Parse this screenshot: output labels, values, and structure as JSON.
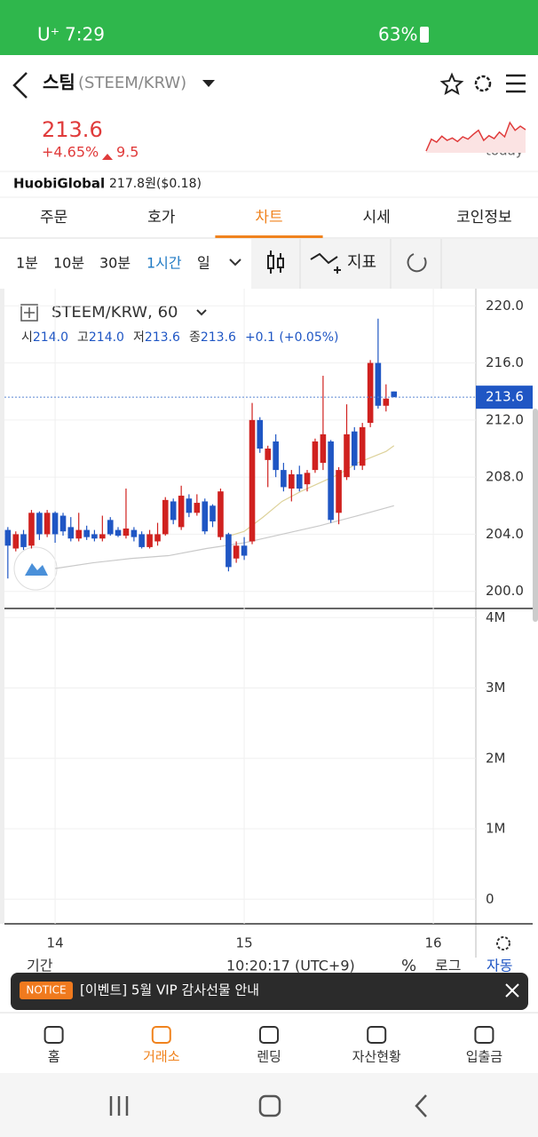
{
  "status_bar": {
    "carrier": "U⁺",
    "time": "7:29",
    "battery": "63%"
  },
  "header": {
    "name": "스팀",
    "pair": "(STEEM/KRW)"
  },
  "price": {
    "value": "213.6",
    "change_pct": "+4.65%",
    "change": "9.5"
  },
  "sparkline": {
    "label": "today",
    "values": [
      210,
      212,
      211.5,
      212.5,
      211.8,
      212.2,
      211.6,
      212.4,
      212,
      212.8,
      213.5,
      211.8,
      212.6,
      212.1,
      213.2,
      212.4,
      214.8,
      213.5,
      214.2,
      213.6
    ]
  },
  "exchange": {
    "name": "HuobiGlobal",
    "price": "217.8원($0.18)"
  },
  "tabs": [
    "주문",
    "호가",
    "차트",
    "시세",
    "코인정보"
  ],
  "active_tab": 2,
  "intervals": [
    "1분",
    "10분",
    "30분",
    "1시간",
    "일"
  ],
  "active_interval": 3,
  "indicator_label": "지표",
  "chart_data": {
    "type": "candlestick",
    "symbol": "STEEM/KRW, 60",
    "legend": [
      {
        "label": "시",
        "value": "214.0"
      },
      {
        "label": "고",
        "value": "214.0"
      },
      {
        "label": "저",
        "value": "213.6"
      },
      {
        "label": "종",
        "value": "213.6"
      }
    ],
    "legend_change": "+0.1 (+0.05%)",
    "up_color": "#d0211f",
    "down_color": "#1f56c4",
    "candles": [
      {
        "x": 13.75,
        "open": 204.3,
        "high": 204.5,
        "low": 200.9,
        "close": 203.2
      },
      {
        "x": 13.792,
        "open": 203.0,
        "high": 204.2,
        "low": 202.8,
        "close": 204.0
      },
      {
        "x": 13.833,
        "open": 204.0,
        "high": 204.3,
        "low": 202.9,
        "close": 203.1
      },
      {
        "x": 13.875,
        "open": 203.2,
        "high": 205.7,
        "low": 203.0,
        "close": 205.5
      },
      {
        "x": 13.917,
        "open": 205.5,
        "high": 205.6,
        "low": 203.6,
        "close": 204.0
      },
      {
        "x": 13.958,
        "open": 204.0,
        "high": 205.7,
        "low": 203.8,
        "close": 205.5
      },
      {
        "x": 14.0,
        "open": 205.5,
        "high": 205.6,
        "low": 203.4,
        "close": 204.0
      },
      {
        "x": 14.042,
        "open": 205.3,
        "high": 205.5,
        "low": 203.9,
        "close": 204.2
      },
      {
        "x": 14.083,
        "open": 204.5,
        "high": 205.2,
        "low": 203.5,
        "close": 203.7
      },
      {
        "x": 14.125,
        "open": 203.7,
        "high": 205.5,
        "low": 203.5,
        "close": 204.3
      },
      {
        "x": 14.167,
        "open": 204.3,
        "high": 204.6,
        "low": 203.6,
        "close": 203.8
      },
      {
        "x": 14.208,
        "open": 204.0,
        "high": 204.3,
        "low": 203.5,
        "close": 203.7
      },
      {
        "x": 14.25,
        "open": 203.7,
        "high": 205.3,
        "low": 203.5,
        "close": 204.0
      },
      {
        "x": 14.292,
        "open": 205.0,
        "high": 205.2,
        "low": 203.9,
        "close": 204.0
      },
      {
        "x": 14.333,
        "open": 204.3,
        "high": 204.5,
        "low": 203.8,
        "close": 203.9
      },
      {
        "x": 14.375,
        "open": 203.9,
        "high": 207.2,
        "low": 203.7,
        "close": 204.4
      },
      {
        "x": 14.417,
        "open": 204.3,
        "high": 204.5,
        "low": 203.5,
        "close": 203.8
      },
      {
        "x": 14.458,
        "open": 204.0,
        "high": 204.2,
        "low": 203.0,
        "close": 203.1
      },
      {
        "x": 14.5,
        "open": 203.1,
        "high": 204.3,
        "low": 203.0,
        "close": 204.0
      },
      {
        "x": 14.542,
        "open": 203.5,
        "high": 204.8,
        "low": 203.2,
        "close": 204.0
      },
      {
        "x": 14.583,
        "open": 204.0,
        "high": 206.6,
        "low": 203.9,
        "close": 206.4
      },
      {
        "x": 14.625,
        "open": 206.3,
        "high": 206.5,
        "low": 204.7,
        "close": 205.0
      },
      {
        "x": 14.667,
        "open": 204.5,
        "high": 207.4,
        "low": 204.3,
        "close": 206.7
      },
      {
        "x": 14.708,
        "open": 206.5,
        "high": 206.8,
        "low": 205.2,
        "close": 205.5
      },
      {
        "x": 14.75,
        "open": 205.5,
        "high": 206.8,
        "low": 205.3,
        "close": 206.2
      },
      {
        "x": 14.792,
        "open": 206.3,
        "high": 206.5,
        "low": 204.0,
        "close": 204.2
      },
      {
        "x": 14.833,
        "open": 206.0,
        "high": 206.1,
        "low": 204.5,
        "close": 204.9
      },
      {
        "x": 14.875,
        "open": 203.8,
        "high": 207.2,
        "low": 203.6,
        "close": 207.0
      },
      {
        "x": 14.917,
        "open": 204.0,
        "high": 204.1,
        "low": 201.4,
        "close": 201.7
      },
      {
        "x": 14.958,
        "open": 202.3,
        "high": 203.5,
        "low": 202.0,
        "close": 203.2
      },
      {
        "x": 15.0,
        "open": 203.2,
        "high": 203.8,
        "low": 202.2,
        "close": 202.5
      },
      {
        "x": 15.042,
        "open": 203.5,
        "high": 213.2,
        "low": 203.3,
        "close": 212.0
      },
      {
        "x": 15.083,
        "open": 212.0,
        "high": 212.2,
        "low": 209.7,
        "close": 210.0
      },
      {
        "x": 15.125,
        "open": 209.2,
        "high": 210.2,
        "low": 207.3,
        "close": 210.0
      },
      {
        "x": 15.167,
        "open": 210.5,
        "high": 211.0,
        "low": 208.0,
        "close": 208.5
      },
      {
        "x": 15.208,
        "open": 208.5,
        "high": 209.0,
        "low": 207.0,
        "close": 207.3
      },
      {
        "x": 15.25,
        "open": 207.2,
        "high": 208.5,
        "low": 206.3,
        "close": 208.2
      },
      {
        "x": 15.292,
        "open": 208.2,
        "high": 208.8,
        "low": 207.0,
        "close": 207.2
      },
      {
        "x": 15.333,
        "open": 207.5,
        "high": 208.5,
        "low": 207.0,
        "close": 208.3
      },
      {
        "x": 15.375,
        "open": 208.5,
        "high": 210.7,
        "low": 208.3,
        "close": 210.5
      },
      {
        "x": 15.417,
        "open": 209.0,
        "high": 215.1,
        "low": 208.5,
        "close": 211.0
      },
      {
        "x": 15.458,
        "open": 210.5,
        "high": 210.6,
        "low": 204.8,
        "close": 205.0
      },
      {
        "x": 15.5,
        "open": 205.5,
        "high": 208.7,
        "low": 204.7,
        "close": 208.5
      },
      {
        "x": 15.542,
        "open": 208.0,
        "high": 213.1,
        "low": 207.8,
        "close": 211.0
      },
      {
        "x": 15.583,
        "open": 211.2,
        "high": 211.5,
        "low": 208.5,
        "close": 208.8
      },
      {
        "x": 15.625,
        "open": 208.8,
        "high": 211.8,
        "low": 208.5,
        "close": 211.5
      },
      {
        "x": 15.667,
        "open": 211.8,
        "high": 216.2,
        "low": 211.5,
        "close": 216.0
      },
      {
        "x": 15.708,
        "open": 216.0,
        "high": 219.1,
        "low": 212.8,
        "close": 213.0
      },
      {
        "x": 15.75,
        "open": 213.0,
        "high": 214.5,
        "low": 212.6,
        "close": 213.5
      },
      {
        "x": 15.792,
        "open": 214.0,
        "high": 214.0,
        "low": 213.6,
        "close": 213.6
      }
    ],
    "ma_lines": [
      {
        "color": "#ddd29a",
        "x": [
          14.9,
          15.0,
          15.1,
          15.2,
          15.3,
          15.4,
          15.5,
          15.6,
          15.75,
          15.792
        ],
        "values": [
          203.8,
          204.2,
          205.2,
          206.3,
          207.0,
          207.6,
          208.2,
          209.0,
          209.8,
          210.2
        ]
      },
      {
        "color": "#c9c9c9",
        "x": [
          14.0,
          14.2,
          14.4,
          14.6,
          14.8,
          15.0,
          15.2,
          15.4,
          15.6,
          15.792
        ],
        "values": [
          201.6,
          202.0,
          202.3,
          202.5,
          203.0,
          203.4,
          204.0,
          204.6,
          205.3,
          206.0
        ]
      }
    ],
    "last_price": 213.6,
    "xlim": [
      13.732,
      16.225
    ],
    "xticks": [
      14,
      15,
      16
    ],
    "ylim": [
      198.8,
      221.2
    ],
    "yticks": [
      {
        "value": 200,
        "label": "200.0"
      },
      {
        "value": 204,
        "label": "204.0"
      },
      {
        "value": 208,
        "label": "208.0"
      },
      {
        "value": 212,
        "label": "212.0"
      },
      {
        "value": 216,
        "label": "216.0"
      },
      {
        "value": 220,
        "label": "220.0"
      }
    ],
    "volume": {
      "ylim": [
        -350000,
        4130000
      ],
      "yticks": [
        0,
        {
          "value": 1000000,
          "label": "1M"
        },
        {
          "value": 2000000,
          "label": "2M"
        },
        {
          "value": 3000000,
          "label": "3M"
        },
        {
          "value": 4000000,
          "label": "4M"
        }
      ]
    },
    "grid": true
  },
  "footer_row": {
    "period": "기간",
    "time": "10:20:17 (UTC+9)",
    "percent": "%",
    "log": "로그",
    "auto": "자동"
  },
  "notice": {
    "badge": "NOTICE",
    "text": "[이벤트] 5월 VIP 감사선물 안내"
  },
  "nav": [
    "홈",
    "거래소",
    "렌딩",
    "자산현황",
    "입출금"
  ],
  "active_nav": 1
}
